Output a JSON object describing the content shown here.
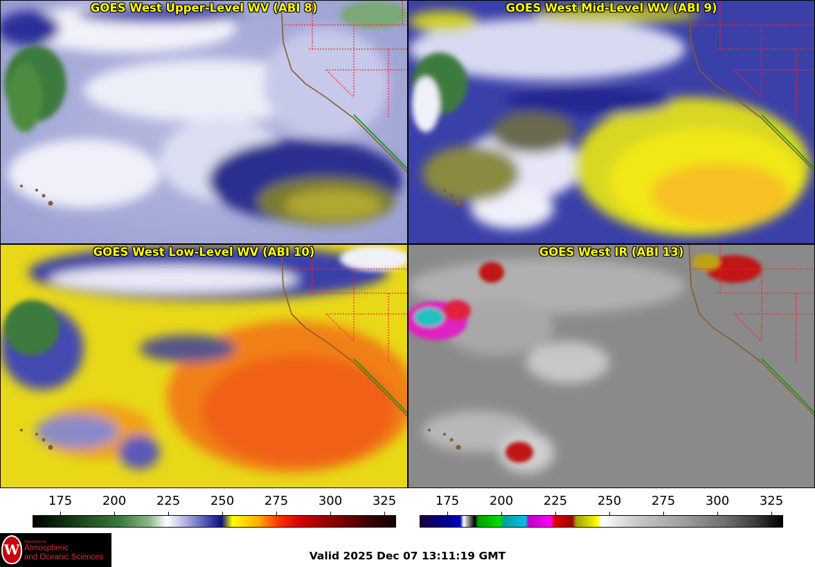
{
  "panels": [
    {
      "title": "GOES West Upper-Level WV (ABI 8)",
      "scheme": "wv-upper"
    },
    {
      "title": "GOES West Mid-Level WV (ABI 9)",
      "scheme": "wv-mid"
    },
    {
      "title": "GOES West Low-Level WV (ABI 10)",
      "scheme": "wv-low"
    },
    {
      "title": "GOES West IR (ABI 13)",
      "scheme": "ir"
    }
  ],
  "colorbars": [
    {
      "ticks": [
        "175",
        "200",
        "225",
        "250",
        "275",
        "300",
        "325"
      ]
    },
    {
      "ticks": [
        "175",
        "200",
        "225",
        "250",
        "275",
        "300",
        "325"
      ]
    }
  ],
  "logo": {
    "department": "Department of",
    "line1": "Atmospheric",
    "line2": "and Oceanic Sciences",
    "seal_letter": "W"
  },
  "valid_time": "Valid 2025 Dec 07 13:11:19 GMT",
  "colors": {
    "title_text": "#ffff00",
    "state_borders": "#ff2020",
    "coastline_us": "#8b5a2b",
    "coastline_mexico": "#00a000"
  }
}
